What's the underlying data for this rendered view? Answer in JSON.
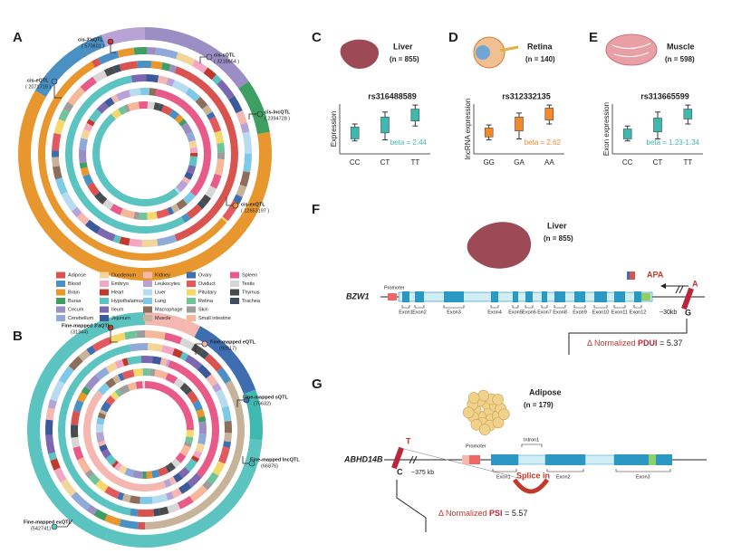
{
  "panel_labels": [
    "A",
    "B",
    "C",
    "D",
    "E",
    "F",
    "G"
  ],
  "panel_a": {
    "annotations": [
      {
        "label": "cis-3'aQTL",
        "count": "( 570601 )"
      },
      {
        "label": "cis-sQTL",
        "count": "( 3218664 )"
      },
      {
        "label": "cis-lncQTL",
        "count": "( 2394728 )"
      },
      {
        "label": "cis-eQTL",
        "count": "( 2071719 )"
      },
      {
        "label": "cis-exQTL",
        "count": "( 12653197 )"
      }
    ]
  },
  "legend": [
    {
      "name": "Adipose",
      "color": "#d9534f"
    },
    {
      "name": "Blood",
      "color": "#4a90c2"
    },
    {
      "name": "Brain",
      "color": "#e8962e"
    },
    {
      "name": "Bursa",
      "color": "#3f9e62"
    },
    {
      "name": "Cecum",
      "color": "#9b8ec4"
    },
    {
      "name": "Cerebellum",
      "color": "#8fa9d8"
    },
    {
      "name": "Duodenum",
      "color": "#f3d49a"
    },
    {
      "name": "Embryo",
      "color": "#f2a7c4"
    },
    {
      "name": "Heart",
      "color": "#c0392b"
    },
    {
      "name": "Hypothalamus",
      "color": "#5cc4c0"
    },
    {
      "name": "Ileum",
      "color": "#7b68b0"
    },
    {
      "name": "Jejunum",
      "color": "#3c5a9a"
    },
    {
      "name": "Kidney",
      "color": "#f4b8b0"
    },
    {
      "name": "Leukocytes",
      "color": "#b9a3d6"
    },
    {
      "name": "Liver",
      "color": "#b8dcef"
    },
    {
      "name": "Lung",
      "color": "#7fc9e8"
    },
    {
      "name": "Macrophage",
      "color": "#8c6e5a"
    },
    {
      "name": "Muscle",
      "color": "#c7b29a"
    },
    {
      "name": "Ovary",
      "color": "#3e6db0"
    },
    {
      "name": "Oviduct",
      "color": "#e2595e"
    },
    {
      "name": "Pituitary",
      "color": "#f4d86b"
    },
    {
      "name": "Retina",
      "color": "#6fc49a"
    },
    {
      "name": "Skin",
      "color": "#9d9d9d"
    },
    {
      "name": "Small intestine",
      "color": "#f7b89a"
    },
    {
      "name": "Spleen",
      "color": "#e85a87"
    },
    {
      "name": "Testis",
      "color": "#d6d6d6"
    },
    {
      "name": "Thymus",
      "color": "#4b4b4b"
    },
    {
      "name": "Trachea",
      "color": "#3d4f5e"
    }
  ],
  "panel_b": {
    "annotations": [
      {
        "label": "Fine-mapped 3'aQTL",
        "count": "(31344)"
      },
      {
        "label": "Fine-mapped eQTL",
        "count": "(92617)"
      },
      {
        "label": "Fine-mapped sQTL",
        "count": "(76632)"
      },
      {
        "label": "Fine-mapped lncQTL",
        "count": "(66876)"
      },
      {
        "label": "Fine-mapped exQTL",
        "count": "(542741)"
      }
    ]
  },
  "tissues": [
    {
      "name": "Liver",
      "n": "(n = 855)"
    },
    {
      "name": "Retina",
      "n": "(n = 140)"
    },
    {
      "name": "Muscle",
      "n": "(n = 598)"
    }
  ],
  "chart_data": [
    {
      "type": "box",
      "title": "rs316488589",
      "y_label": "Expression",
      "annotation": "beta = 2.44",
      "color": "#3fb8b0",
      "categories": [
        "CC",
        "CT",
        "TT"
      ],
      "ylim": [
        0,
        10
      ],
      "min": [
        2.6,
        2.8,
        5.6
      ],
      "q1": [
        3.0,
        4.2,
        6.6
      ],
      "q3": [
        5.4,
        7.4,
        9.0
      ],
      "max": [
        6.0,
        8.4,
        9.8
      ]
    },
    {
      "type": "box",
      "title": "rs312332135",
      "y_label": "lncRNA expression",
      "annotation": "beta = 2.62",
      "color": "#f08a2c",
      "categories": [
        "GG",
        "GA",
        "AA"
      ],
      "ylim": [
        0,
        10
      ],
      "min": [
        2.8,
        3.0,
        6.0
      ],
      "q1": [
        3.4,
        4.6,
        6.8
      ],
      "q3": [
        5.2,
        7.4,
        9.2
      ],
      "max": [
        5.8,
        8.2,
        9.8
      ]
    },
    {
      "type": "box",
      "title": "rs313665599",
      "y_label": "Exon expression",
      "annotation": "beta = 1.23-1.34",
      "color": "#3fb8b0",
      "categories": [
        "CC",
        "CT",
        "TT"
      ],
      "ylim": [
        0,
        10
      ],
      "min": [
        2.6,
        3.0,
        6.0
      ],
      "q1": [
        3.0,
        4.4,
        7.0
      ],
      "q3": [
        5.0,
        7.2,
        9.0
      ],
      "max": [
        5.6,
        8.4,
        9.8
      ]
    }
  ],
  "panel_f": {
    "tissue": "Liver",
    "n": "(n = 855)",
    "gene": "BZW1",
    "promoter": "Promoter",
    "exons": [
      "Exon1",
      "Exon2",
      "Exon3",
      "Exon4",
      "Exon5",
      "Exon6",
      "Exon7",
      "Exon8",
      "Exon9",
      "Exon10",
      "Exon11",
      "Exon12"
    ],
    "distance": "~30kb",
    "alt_allele": "A",
    "ref_allele": "G",
    "event": "APA",
    "stat_prefix": "Δ Normalized",
    "stat_name": "PDUI",
    "stat_value": "= 5.37"
  },
  "panel_g": {
    "tissue": "Adipose",
    "n": "(n = 179)",
    "gene": "ABHD14B",
    "promoter": "Promoter",
    "intron": "Intron1",
    "exons": [
      "Exon1",
      "Exon2",
      "Exon3"
    ],
    "distance": "~375 kb",
    "alt_allele": "T",
    "ref_allele": "C",
    "event": "Splice in",
    "stat_prefix": "Δ Normalized",
    "stat_name": "PSI",
    "stat_value": "= 5.57"
  }
}
